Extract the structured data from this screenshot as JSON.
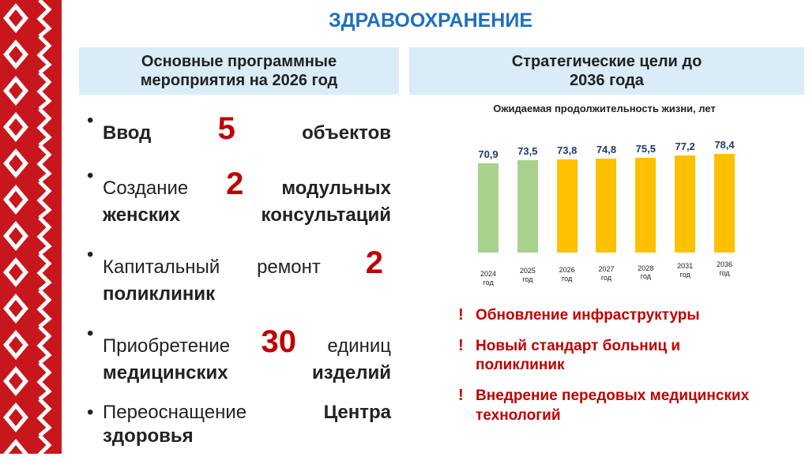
{
  "title": "ЗДРАВООХРАНЕНИЕ",
  "left": {
    "heading": "Основные программные мероприятия на 2026 год",
    "items": [
      {
        "parts": [
          {
            "bold": "Ввод"
          },
          {
            "number": 5
          },
          {
            "bold": "объектов"
          }
        ]
      },
      {
        "parts": [
          {
            "text": "Создание"
          },
          {
            "number": 2
          },
          {
            "bold": "модульных женских консультаций"
          }
        ]
      },
      {
        "parts": [
          {
            "text": "Капитальный ремонт"
          },
          {
            "number": 2
          },
          {
            "bold": "поликлиник"
          }
        ]
      },
      {
        "parts": [
          {
            "text": "Приобретение"
          },
          {
            "number": 30
          },
          {
            "text": "единиц"
          },
          {
            "bold": "медицинских изделий"
          }
        ]
      },
      {
        "parts": [
          {
            "text": "Переоснащение"
          },
          {
            "bold": "Центра здоровья"
          }
        ]
      }
    ]
  },
  "right": {
    "heading": "Стратегические цели до 2036 года",
    "goals": [
      "Обновление инфраструктуры",
      "Новый стандарт больниц и поликлиник",
      "Внедрение передовых медицинских технологий"
    ]
  },
  "chart_data": {
    "type": "bar",
    "title": "Ожидаемая продолжительность жизни, лет",
    "categories": [
      "2024 год",
      "2025 год",
      "2026 год",
      "2027 год",
      "2028 год",
      "2031 год",
      "2036 год"
    ],
    "values": [
      70.9,
      73.5,
      73.8,
      74.8,
      75.5,
      77.2,
      78.4
    ],
    "value_labels": [
      "70,9",
      "73,5",
      "73,8",
      "74,8",
      "75,5",
      "77,2",
      "78,4"
    ],
    "colors": [
      "#a9d18e",
      "#a9d18e",
      "#ffc000",
      "#ffc000",
      "#ffc000",
      "#ffc000",
      "#ffc000"
    ]
  }
}
